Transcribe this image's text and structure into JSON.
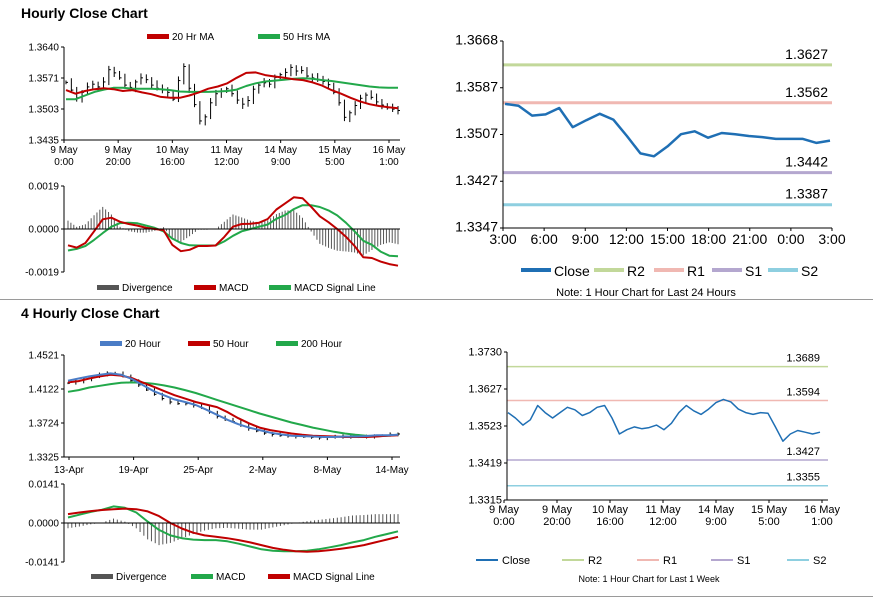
{
  "sections": {
    "hourly_title": "Hourly Close Chart",
    "four_hourly_title": "4 Hourly Close Chart"
  },
  "chart_data": [
    {
      "id": "hourly-price",
      "type": "line",
      "ylim": [
        1.3435,
        1.364
      ],
      "y_ticks": [
        "1.3640",
        "1.3571",
        "1.3503",
        "1.3435"
      ],
      "x_ticks": [
        [
          "9 May",
          "0:00"
        ],
        [
          "9 May",
          "20:00"
        ],
        [
          "10 May",
          "16:00"
        ],
        [
          "11 May",
          "12:00"
        ],
        [
          "14 May",
          "9:00"
        ],
        [
          "15 May",
          "5:00"
        ],
        [
          "16 May",
          "1:00"
        ]
      ],
      "legend": [
        "20 Hr MA",
        "50 Hrs MA"
      ],
      "colors": {
        "price": "#000000",
        "ma20": "#c00000",
        "ma50": "#22a84a"
      },
      "series": [
        {
          "name": "20 Hr MA",
          "values": [
            1.3545,
            1.3537,
            1.3543,
            1.3547,
            1.3549,
            1.3547,
            1.3543,
            1.3545,
            1.354,
            1.3536,
            1.353,
            1.3528,
            1.3528,
            1.3533,
            1.354,
            1.3548,
            1.3553,
            1.356,
            1.3572,
            1.3583,
            1.3584,
            1.3578,
            1.3575,
            1.3572,
            1.3569,
            1.3567,
            1.3562,
            1.3555,
            1.3545,
            1.3537,
            1.3528,
            1.352,
            1.3514,
            1.351,
            1.3507,
            1.3505
          ]
        },
        {
          "name": "50 Hrs MA",
          "values": [
            1.3525,
            1.3525,
            1.3533,
            1.3541,
            1.3546,
            1.355,
            1.355,
            1.3548,
            1.3548,
            1.3548,
            1.3547,
            1.3545,
            1.3542,
            1.3541,
            1.3541,
            1.3541,
            1.3542,
            1.3543,
            1.3546,
            1.3554,
            1.356,
            1.3564,
            1.3566,
            1.3568,
            1.357,
            1.3571,
            1.357,
            1.3567,
            1.3565,
            1.3562,
            1.3559,
            1.3556,
            1.3553,
            1.3551,
            1.355,
            1.355
          ]
        }
      ],
      "ohlc_close": [
        1.3562,
        1.3545,
        1.3528,
        1.354,
        1.3552,
        1.3558,
        1.3552,
        1.3563,
        1.359,
        1.3583,
        1.3572,
        1.3556,
        1.3551,
        1.3563,
        1.3572,
        1.3568,
        1.3556,
        1.3549,
        1.3545,
        1.354,
        1.3525,
        1.3566,
        1.3597,
        1.3549,
        1.3513,
        1.3477,
        1.3486,
        1.3517,
        1.3537,
        1.3543,
        1.3548,
        1.3537,
        1.3523,
        1.3514,
        1.3522,
        1.3547,
        1.3556,
        1.3561,
        1.3558,
        1.3573,
        1.3579,
        1.3584,
        1.3595,
        1.3587,
        1.3588,
        1.3576,
        1.3572,
        1.3568,
        1.3564,
        1.3557,
        1.354,
        1.3517,
        1.3485,
        1.3495,
        1.3511,
        1.3527,
        1.3534,
        1.3529,
        1.3519,
        1.3512,
        1.3506,
        1.3503,
        1.35
      ]
    },
    {
      "id": "hourly-macd",
      "type": "line",
      "ylim": [
        -0.0019,
        0.0019
      ],
      "y_ticks": [
        "0.0019",
        "0.0000",
        "-0.0019"
      ],
      "legend": [
        "Divergence",
        "MACD",
        "MACD Signal Line"
      ],
      "colors": {
        "divergence": "#555555",
        "macd": "#c00000",
        "signal": "#22a84a"
      },
      "series": [
        {
          "name": "MACD",
          "values": [
            -0.00072,
            -0.00082,
            -0.00062,
            -0.0001,
            0.00043,
            0.0005,
            0.00032,
            0.00022,
            0.00015,
            5e-05,
            0.0,
            -5e-05,
            -0.0007,
            -0.00098,
            -0.00092,
            -0.00075,
            -0.00075,
            -0.00073,
            -0.00035,
            0.0001,
            0.00022,
            0.00023,
            0.00028,
            0.00044,
            0.00086,
            0.00113,
            0.0014,
            0.00136,
            0.00098,
            0.00056,
            0.0003,
            0.0,
            -0.00034,
            -0.00075,
            -0.00125,
            -0.00128,
            -0.00144,
            -0.00155,
            -0.00162
          ]
        },
        {
          "name": "MACD Signal Line",
          "values": [
            -0.00095,
            -0.00088,
            -0.00075,
            -0.00048,
            -0.00018,
            0.0001,
            0.00026,
            0.00028,
            0.00025,
            0.00015,
            5e-05,
            -0.0001,
            -0.00042,
            -0.00062,
            -0.00072,
            -0.00073,
            -0.00073,
            -0.00073,
            -0.00055,
            -0.0003,
            -0.0001,
            0.0,
            0.0001,
            0.0002,
            0.00045,
            0.00062,
            0.00088,
            0.00105,
            0.00105,
            0.00097,
            0.00082,
            0.0006,
            0.00028,
            -0.0001,
            -0.00052,
            -0.0007,
            -0.001,
            -0.00118,
            -0.0012
          ]
        }
      ]
    },
    {
      "id": "hourly-pivot",
      "type": "line",
      "ylim": [
        1.3347,
        1.3668
      ],
      "y_ticks": [
        "1.3668",
        "1.3587",
        "1.3507",
        "1.3427",
        "1.3347"
      ],
      "x_ticks": [
        "3:00",
        "6:00",
        "9:00",
        "12:00",
        "15:00",
        "18:00",
        "21:00",
        "0:00",
        "3:00"
      ],
      "legend": [
        "Close",
        "R2",
        "R1",
        "S1",
        "S2"
      ],
      "levels": {
        "R2": 1.3627,
        "R1": 1.3562,
        "S1": 1.3442,
        "S2": 1.3387
      },
      "level_labels": {
        "R2": "1.3627",
        "R1": "1.3562",
        "S1": "1.3442",
        "S2": "1.3387"
      },
      "colors": {
        "close": "#1f6fb4",
        "R2": "#c2d89a",
        "R1": "#f0b8b2",
        "S1": "#b4a7cf",
        "S2": "#8ecfe0"
      },
      "x": [
        0,
        1,
        2,
        3,
        4,
        5,
        6,
        7,
        8,
        9,
        10,
        11,
        12,
        13,
        14,
        15,
        16,
        17,
        18,
        19,
        20,
        21,
        22,
        23,
        24
      ],
      "close": [
        1.356,
        1.3557,
        1.354,
        1.3542,
        1.3553,
        1.352,
        1.3532,
        1.3543,
        1.3533,
        1.3505,
        1.3475,
        1.347,
        1.3487,
        1.3508,
        1.3513,
        1.3502,
        1.351,
        1.3508,
        1.3505,
        1.3503,
        1.35,
        1.35,
        1.35,
        1.3493,
        1.3497
      ],
      "note": "Note: 1 Hour Chart for Last 24 Hours"
    },
    {
      "id": "four-hourly-price",
      "type": "line",
      "ylim": [
        1.3325,
        1.4521
      ],
      "y_ticks": [
        "1.4521",
        "1.4122",
        "1.3724",
        "1.3325"
      ],
      "x_ticks": [
        "13-Apr",
        "19-Apr",
        "25-Apr",
        "2-May",
        "8-May",
        "14-May"
      ],
      "legend": [
        "20 Hour",
        "50 Hour",
        "200 Hour"
      ],
      "colors": {
        "ma20": "#4a7cc6",
        "ma50": "#c00000",
        "ma200": "#22a84a",
        "price": "#000000"
      },
      "series": [
        {
          "name": "20 Hour",
          "values": [
            1.422,
            1.4245,
            1.427,
            1.429,
            1.4305,
            1.429,
            1.424,
            1.417,
            1.41,
            1.405,
            1.4,
            1.397,
            1.3935,
            1.388,
            1.382,
            1.376,
            1.371,
            1.367,
            1.364,
            1.361,
            1.359,
            1.3575,
            1.357,
            1.3565,
            1.356,
            1.356,
            1.3565,
            1.3565,
            1.357,
            1.358,
            1.358,
            1.3585
          ]
        },
        {
          "name": "50 Hour",
          "values": [
            1.42,
            1.4215,
            1.4245,
            1.427,
            1.429,
            1.428,
            1.425,
            1.42,
            1.415,
            1.41,
            1.405,
            1.401,
            1.397,
            1.394,
            1.391,
            1.385,
            1.378,
            1.372,
            1.367,
            1.364,
            1.362,
            1.36,
            1.3585,
            1.3575,
            1.357,
            1.3565,
            1.356,
            1.356,
            1.356,
            1.3565,
            1.3575,
            1.358
          ]
        },
        {
          "name": "200 Hour",
          "values": [
            1.409,
            1.411,
            1.414,
            1.416,
            1.418,
            1.4195,
            1.42,
            1.4195,
            1.4185,
            1.4165,
            1.414,
            1.411,
            1.4075,
            1.4035,
            1.3995,
            1.3955,
            1.3915,
            1.3875,
            1.3835,
            1.38,
            1.3765,
            1.373,
            1.37,
            1.367,
            1.3645,
            1.362,
            1.36,
            1.3585,
            1.3575,
            1.357,
            1.3575,
            1.3585
          ]
        }
      ],
      "ohlc_close": [
        1.419,
        1.421,
        1.424,
        1.4265,
        1.429,
        1.431,
        1.43,
        1.427,
        1.422,
        1.417,
        1.411,
        1.406,
        1.401,
        1.397,
        1.395,
        1.395,
        1.393,
        1.39,
        1.385,
        1.38,
        1.376,
        1.374,
        1.37,
        1.366,
        1.363,
        1.3605,
        1.359,
        1.3575,
        1.357,
        1.3565,
        1.356,
        1.3555,
        1.355,
        1.3555,
        1.356,
        1.357,
        1.3565,
        1.356,
        1.3565,
        1.3575,
        1.358,
        1.359,
        1.3595
      ]
    },
    {
      "id": "four-hourly-macd",
      "type": "line",
      "ylim": [
        -0.0141,
        0.0141
      ],
      "y_ticks": [
        "0.0141",
        "0.0000",
        "-0.0141"
      ],
      "legend": [
        "Divergence",
        "MACD",
        "MACD Signal Line"
      ],
      "colors": {
        "divergence": "#555555",
        "macd": "#22a84a",
        "signal": "#c00000"
      },
      "series": [
        {
          "name": "MACD",
          "values": [
            0.002,
            0.003,
            0.004,
            0.0048,
            0.006,
            0.0055,
            0.0038,
            0.0005,
            -0.0025,
            -0.0045,
            -0.0055,
            -0.006,
            -0.0062,
            -0.0062,
            -0.0066,
            -0.0075,
            -0.0085,
            -0.0095,
            -0.01,
            -0.0102,
            -0.0102,
            -0.01,
            -0.0095,
            -0.0088,
            -0.008,
            -0.007,
            -0.0062,
            -0.005,
            -0.004,
            -0.003
          ]
        },
        {
          "name": "MACD Signal Line",
          "values": [
            0.0032,
            0.0038,
            0.0043,
            0.0047,
            0.005,
            0.0052,
            0.005,
            0.0042,
            0.0025,
            0.0,
            -0.002,
            -0.0035,
            -0.0045,
            -0.005,
            -0.0055,
            -0.0062,
            -0.007,
            -0.008,
            -0.009,
            -0.0097,
            -0.0102,
            -0.0104,
            -0.0102,
            -0.0098,
            -0.0093,
            -0.0087,
            -0.008,
            -0.007,
            -0.006,
            -0.005
          ]
        }
      ]
    },
    {
      "id": "four-hourly-pivot",
      "type": "line",
      "ylim": [
        1.3315,
        1.373
      ],
      "y_ticks": [
        "1.3730",
        "1.3627",
        "1.3523",
        "1.3419",
        "1.3315"
      ],
      "x_ticks": [
        [
          "9 May",
          "0:00"
        ],
        [
          "9 May",
          "20:00"
        ],
        [
          "10 May",
          "16:00"
        ],
        [
          "11 May",
          "12:00"
        ],
        [
          "14 May",
          "9:00"
        ],
        [
          "15 May",
          "5:00"
        ],
        [
          "16 May",
          "1:00"
        ]
      ],
      "legend": [
        "Close",
        "R2",
        "R1",
        "S1",
        "S2"
      ],
      "levels": {
        "R2": 1.3689,
        "R1": 1.3594,
        "S1": 1.3427,
        "S2": 1.3355
      },
      "level_labels": {
        "R2": "1.3689",
        "R1": "1.3594",
        "S1": "1.3427",
        "S2": "1.3355"
      },
      "colors": {
        "close": "#1f6fb4",
        "R2": "#c2d89a",
        "R1": "#f0b8b2",
        "S1": "#b4a7cf",
        "S2": "#8ecfe0"
      },
      "close": [
        1.356,
        1.3545,
        1.3525,
        1.354,
        1.358,
        1.356,
        1.3545,
        1.356,
        1.3575,
        1.3568,
        1.3552,
        1.356,
        1.3575,
        1.358,
        1.3545,
        1.35,
        1.3512,
        1.352,
        1.3515,
        1.3518,
        1.3525,
        1.3512,
        1.353,
        1.356,
        1.358,
        1.3565,
        1.3555,
        1.357,
        1.3588,
        1.3597,
        1.359,
        1.357,
        1.356,
        1.3555,
        1.356,
        1.3558,
        1.352,
        1.348,
        1.35,
        1.351,
        1.3505,
        1.35,
        1.3505
      ],
      "note": "Note: 1 Hour Chart for Last 1 Week"
    }
  ]
}
